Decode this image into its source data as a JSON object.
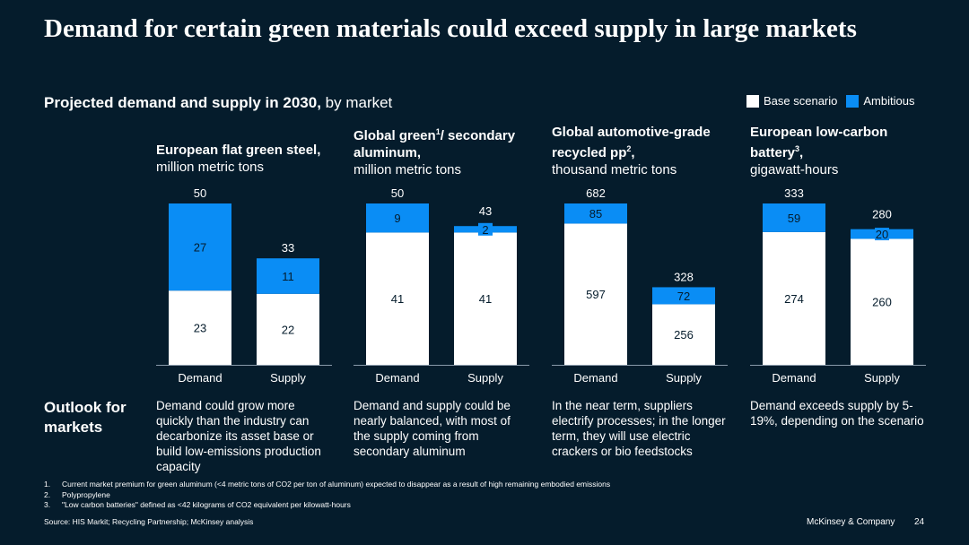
{
  "title": "Demand for certain green materials could exceed supply in large markets",
  "subtitle": {
    "bold": "Projected demand and supply in 2030,",
    "rest": " by market"
  },
  "legend": [
    {
      "label": "Base scenario",
      "color": "#ffffff"
    },
    {
      "label": "Ambitious",
      "color": "#0a8df5"
    }
  ],
  "panels": [
    {
      "title_bold": "European flat green steel,",
      "title_sup": "",
      "title_bold_after": "",
      "unit": "million metric tons"
    },
    {
      "title_bold": "Global green",
      "title_sup": "1",
      "title_bold_after": "/ secondary aluminum,",
      "unit": "million metric tons"
    },
    {
      "title_bold": "Global automotive-grade recycled pp",
      "title_sup": "2",
      "title_bold_after": ",",
      "unit": "thousand metric tons"
    },
    {
      "title_bold": "European low-carbon battery",
      "title_sup": "3",
      "title_bold_after": ",",
      "unit": "gigawatt-hours"
    }
  ],
  "chart_data": [
    {
      "type": "bar",
      "stacked": true,
      "title": "European flat green steel",
      "unit": "million metric tons",
      "categories": [
        "Demand",
        "Supply"
      ],
      "series": [
        {
          "name": "Base scenario",
          "values": [
            23,
            22
          ]
        },
        {
          "name": "Ambitious",
          "values": [
            27,
            11
          ]
        }
      ],
      "totals": [
        50,
        33
      ]
    },
    {
      "type": "bar",
      "stacked": true,
      "title": "Global green / secondary aluminum",
      "unit": "million metric tons",
      "categories": [
        "Demand",
        "Supply"
      ],
      "series": [
        {
          "name": "Base scenario",
          "values": [
            41,
            41
          ]
        },
        {
          "name": "Ambitious",
          "values": [
            9,
            2
          ]
        }
      ],
      "totals": [
        50,
        43
      ]
    },
    {
      "type": "bar",
      "stacked": true,
      "title": "Global automotive-grade recycled pp",
      "unit": "thousand metric tons",
      "categories": [
        "Demand",
        "Supply"
      ],
      "series": [
        {
          "name": "Base scenario",
          "values": [
            597,
            256
          ]
        },
        {
          "name": "Ambitious",
          "values": [
            85,
            72
          ]
        }
      ],
      "totals": [
        682,
        328
      ]
    },
    {
      "type": "bar",
      "stacked": true,
      "title": "European low-carbon battery",
      "unit": "gigawatt-hours",
      "categories": [
        "Demand",
        "Supply"
      ],
      "series": [
        {
          "name": "Base scenario",
          "values": [
            274,
            260
          ]
        },
        {
          "name": "Ambitious",
          "values": [
            59,
            20
          ]
        }
      ],
      "totals": [
        333,
        280
      ]
    }
  ],
  "outlook": {
    "label": "Outlook for markets",
    "texts": [
      "Demand could grow more quickly than the industry can decarbonize its asset base or build low-emissions production capacity",
      "Demand and supply could be nearly balanced, with most of the supply coming from secondary aluminum",
      "In the near term, suppliers electrify processes; in the longer term, they will use electric crackers or bio feedstocks",
      "Demand exceeds supply by 5-19%, depending on the scenario"
    ]
  },
  "footnotes": [
    {
      "num": "1.",
      "text": "Current market premium for green aluminum (<4 metric tons of CO2 per ton of aluminum) expected to disappear as a result of high remaining embodied emissions"
    },
    {
      "num": "2.",
      "text": "Polypropylene"
    },
    {
      "num": "3.",
      "text": "\"Low carbon batteries\" defined as <42 kilograms of CO2 equivalent per kilowatt-hours"
    }
  ],
  "source": "Source: HIS Markit; Recycling Partnership; McKinsey analysis",
  "brand": "McKinsey & Company",
  "page_number": "24",
  "colors": {
    "background": "#051c2c",
    "base": "#ffffff",
    "ambitious": "#0a8df5",
    "axis": "#8a9bab"
  }
}
